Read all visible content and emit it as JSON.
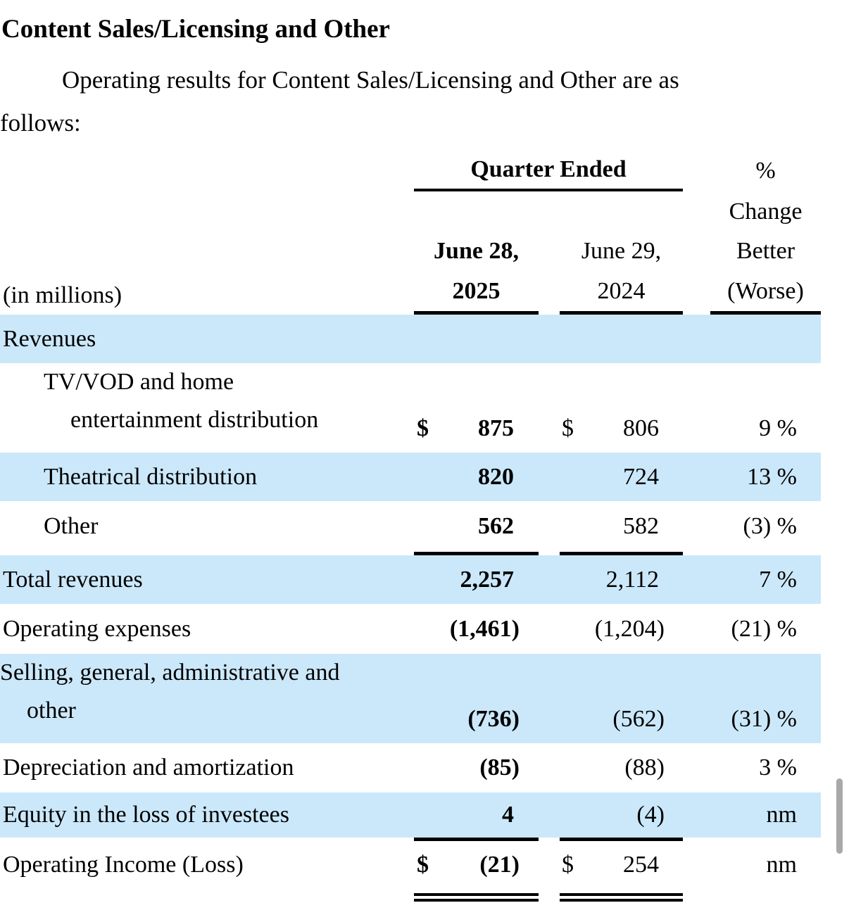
{
  "title": "Content Sales/Licensing and Other",
  "intro": {
    "line1": "Operating results for Content Sales/Licensing and Other are as",
    "line2": "follows:"
  },
  "table": {
    "unit_label": "(in millions)",
    "header": {
      "group_label": "Quarter Ended",
      "pct_line1": "%",
      "pct_line2": "Change",
      "pct_line3": "Better",
      "pct_line4": "(Worse)",
      "col_2025_line1": "June 28,",
      "col_2025_line2": "2025",
      "col_2024_line1": "June 29,",
      "col_2024_line2": "2024"
    },
    "rows": [
      {
        "label": "Revenues"
      },
      {
        "label_line1": "TV/VOD and home",
        "label_line2": "entertainment distribution",
        "cur_2025": "$",
        "val_2025": "875",
        "cur_2024": "$",
        "val_2024": "806",
        "pct": "9 %"
      },
      {
        "label": "Theatrical distribution",
        "val_2025": "820",
        "val_2024": "724",
        "pct": "13 %"
      },
      {
        "label": "Other",
        "val_2025": "562",
        "val_2024": "582",
        "pct": "(3) %"
      },
      {
        "label": "Total revenues",
        "val_2025": "2,257",
        "val_2024": "2,112",
        "pct": "7 %"
      },
      {
        "label": "Operating expenses",
        "val_2025": "(1,461)",
        "val_2024": "(1,204)",
        "pct": "(21) %"
      },
      {
        "label_line1": "Selling, general, administrative and",
        "label_line2": "other",
        "val_2025": "(736)",
        "val_2024": "(562)",
        "pct": "(31) %"
      },
      {
        "label": "Depreciation and amortization",
        "val_2025": "(85)",
        "val_2024": "(88)",
        "pct": "3 %"
      },
      {
        "label": "Equity in the loss of investees",
        "val_2025": "4",
        "val_2024": "(4)",
        "pct": "nm"
      },
      {
        "label": "Operating Income (Loss)",
        "cur_2025": "$",
        "val_2025": "(21)",
        "cur_2024": "$",
        "val_2024": "254",
        "pct": "nm"
      }
    ]
  },
  "colors": {
    "row_highlight": "#cbe8fa",
    "text": "#000000",
    "rules": "#000000",
    "scrollbar": "#a9a9a9"
  }
}
